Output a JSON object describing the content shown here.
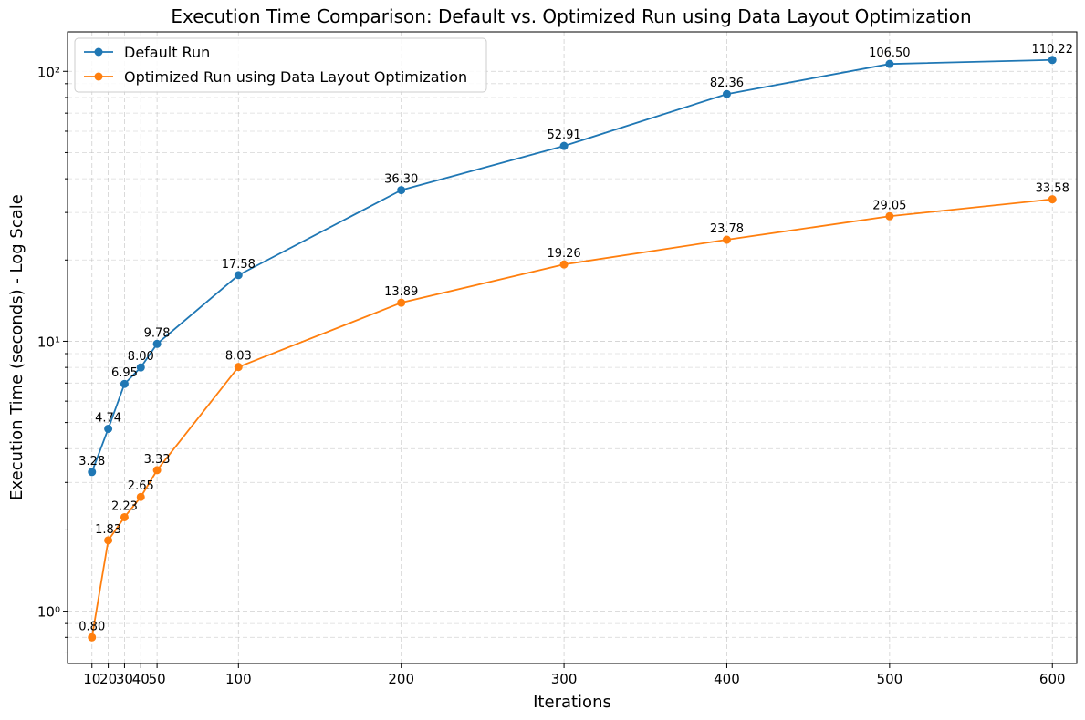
{
  "chart_data": {
    "type": "line",
    "title": "Execution Time Comparison: Default vs. Optimized Run using Data Layout Optimization",
    "xlabel": "Iterations",
    "ylabel": "Execution Time (seconds) - Log Scale",
    "y_scale": "log",
    "xticks": [
      10,
      20,
      30,
      40,
      50,
      100,
      200,
      300,
      400,
      500,
      600
    ],
    "xtick_labels": [
      "10",
      "20",
      "30",
      "40",
      "50",
      "100",
      "200",
      "300",
      "400",
      "500",
      "600"
    ],
    "yticks": [
      1,
      10,
      100
    ],
    "ytick_labels": [
      "10⁰",
      "10¹",
      "10²"
    ],
    "xlim": [
      -5,
      615
    ],
    "ylim": [
      0.64,
      140
    ],
    "grid": "on",
    "legend_position": "top-left",
    "x": [
      10,
      20,
      30,
      40,
      50,
      100,
      200,
      300,
      400,
      500,
      600
    ],
    "series": [
      {
        "name": "Default Run",
        "color": "#1f77b4",
        "values": [
          3.28,
          4.74,
          6.95,
          8.0,
          9.78,
          17.58,
          36.3,
          52.91,
          82.36,
          106.5,
          110.22
        ],
        "labels": [
          "3.28",
          "4.74",
          "6.95",
          "8.00",
          "9.78",
          "17.58",
          "36.30",
          "52.91",
          "82.36",
          "106.50",
          "110.22"
        ]
      },
      {
        "name": "Optimized Run using Data Layout Optimization",
        "color": "#ff7f0e",
        "values": [
          0.8,
          1.83,
          2.23,
          2.65,
          3.33,
          8.03,
          13.89,
          19.26,
          23.78,
          29.05,
          33.58
        ],
        "labels": [
          "0.80",
          "1.83",
          "2.23",
          "2.65",
          "3.33",
          "8.03",
          "13.89",
          "19.26",
          "23.78",
          "29.05",
          "33.58"
        ]
      }
    ]
  }
}
